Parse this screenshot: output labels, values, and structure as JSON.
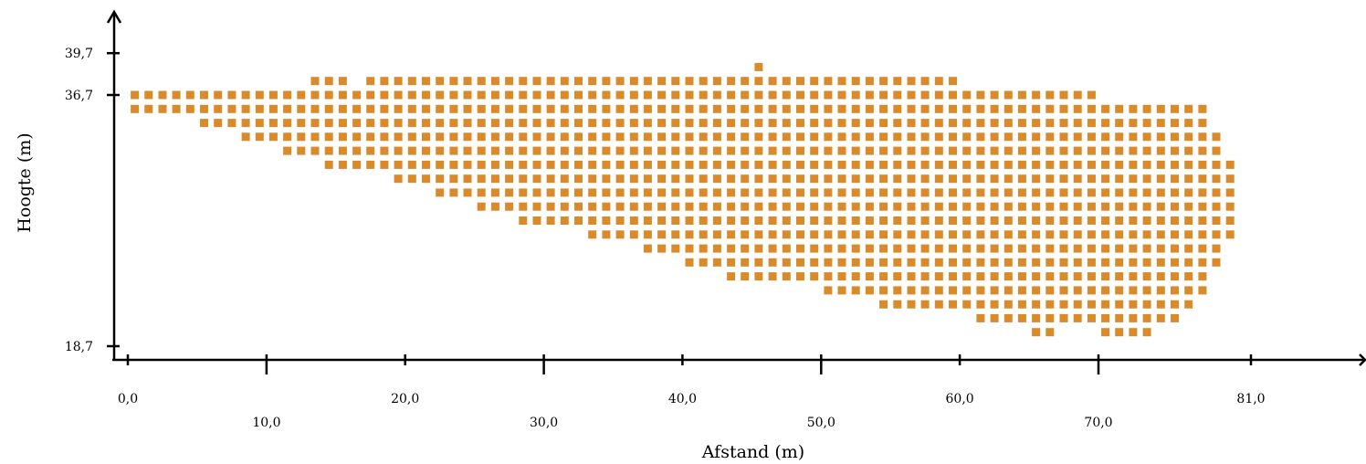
{
  "chart_data": {
    "type": "heatmap",
    "title": "",
    "xlabel": "Afstand (m)",
    "ylabel": "Hoogte (m)",
    "xlim": [
      0,
      90
    ],
    "ylim": [
      16.7,
      43.3
    ],
    "x_tick_values": [
      0,
      10,
      20,
      30,
      40,
      50,
      60,
      70,
      81
    ],
    "x_tick_labels": [
      "0,0",
      "10,0",
      "20,0",
      "30,0",
      "40,0",
      "50,0",
      "60,0",
      "70,0",
      "81,0"
    ],
    "y_tick_values": [
      18.7,
      36.7,
      39.7
    ],
    "y_tick_labels": [
      "18,7",
      "36,7",
      "39,7"
    ],
    "cell_width": 1.0,
    "cell_height": 1.0,
    "cell_color": "#d98b2b",
    "grid": false,
    "legend": "none",
    "rows": [
      {
        "y": 38.7,
        "x_ranges": [
          [
            45.5,
            45.5
          ]
        ]
      },
      {
        "y": 37.7,
        "x_ranges": [
          [
            13.5,
            15.5
          ],
          [
            17.5,
            59.5
          ]
        ]
      },
      {
        "y": 36.7,
        "x_ranges": [
          [
            0.5,
            69.5
          ]
        ]
      },
      {
        "y": 35.7,
        "x_ranges": [
          [
            0.5,
            77.5
          ]
        ]
      },
      {
        "y": 34.7,
        "x_ranges": [
          [
            5.5,
            77.5
          ]
        ]
      },
      {
        "y": 33.7,
        "x_ranges": [
          [
            8.5,
            78.5
          ]
        ]
      },
      {
        "y": 32.7,
        "x_ranges": [
          [
            11.5,
            78.5
          ]
        ]
      },
      {
        "y": 31.7,
        "x_ranges": [
          [
            14.5,
            79.5
          ]
        ]
      },
      {
        "y": 30.7,
        "x_ranges": [
          [
            19.5,
            79.5
          ]
        ]
      },
      {
        "y": 29.7,
        "x_ranges": [
          [
            22.5,
            79.5
          ]
        ]
      },
      {
        "y": 28.7,
        "x_ranges": [
          [
            25.5,
            79.5
          ]
        ]
      },
      {
        "y": 27.7,
        "x_ranges": [
          [
            28.5,
            79.5
          ]
        ]
      },
      {
        "y": 26.7,
        "x_ranges": [
          [
            33.5,
            79.5
          ]
        ]
      },
      {
        "y": 25.7,
        "x_ranges": [
          [
            37.5,
            78.5
          ]
        ]
      },
      {
        "y": 24.7,
        "x_ranges": [
          [
            40.5,
            78.5
          ]
        ]
      },
      {
        "y": 23.7,
        "x_ranges": [
          [
            43.5,
            77.5
          ]
        ]
      },
      {
        "y": 22.7,
        "x_ranges": [
          [
            50.5,
            77.5
          ]
        ]
      },
      {
        "y": 21.7,
        "x_ranges": [
          [
            54.5,
            76.5
          ]
        ]
      },
      {
        "y": 20.7,
        "x_ranges": [
          [
            61.5,
            75.5
          ]
        ]
      },
      {
        "y": 19.7,
        "x_ranges": [
          [
            65.5,
            66.5
          ],
          [
            70.5,
            73.5
          ]
        ]
      }
    ]
  }
}
